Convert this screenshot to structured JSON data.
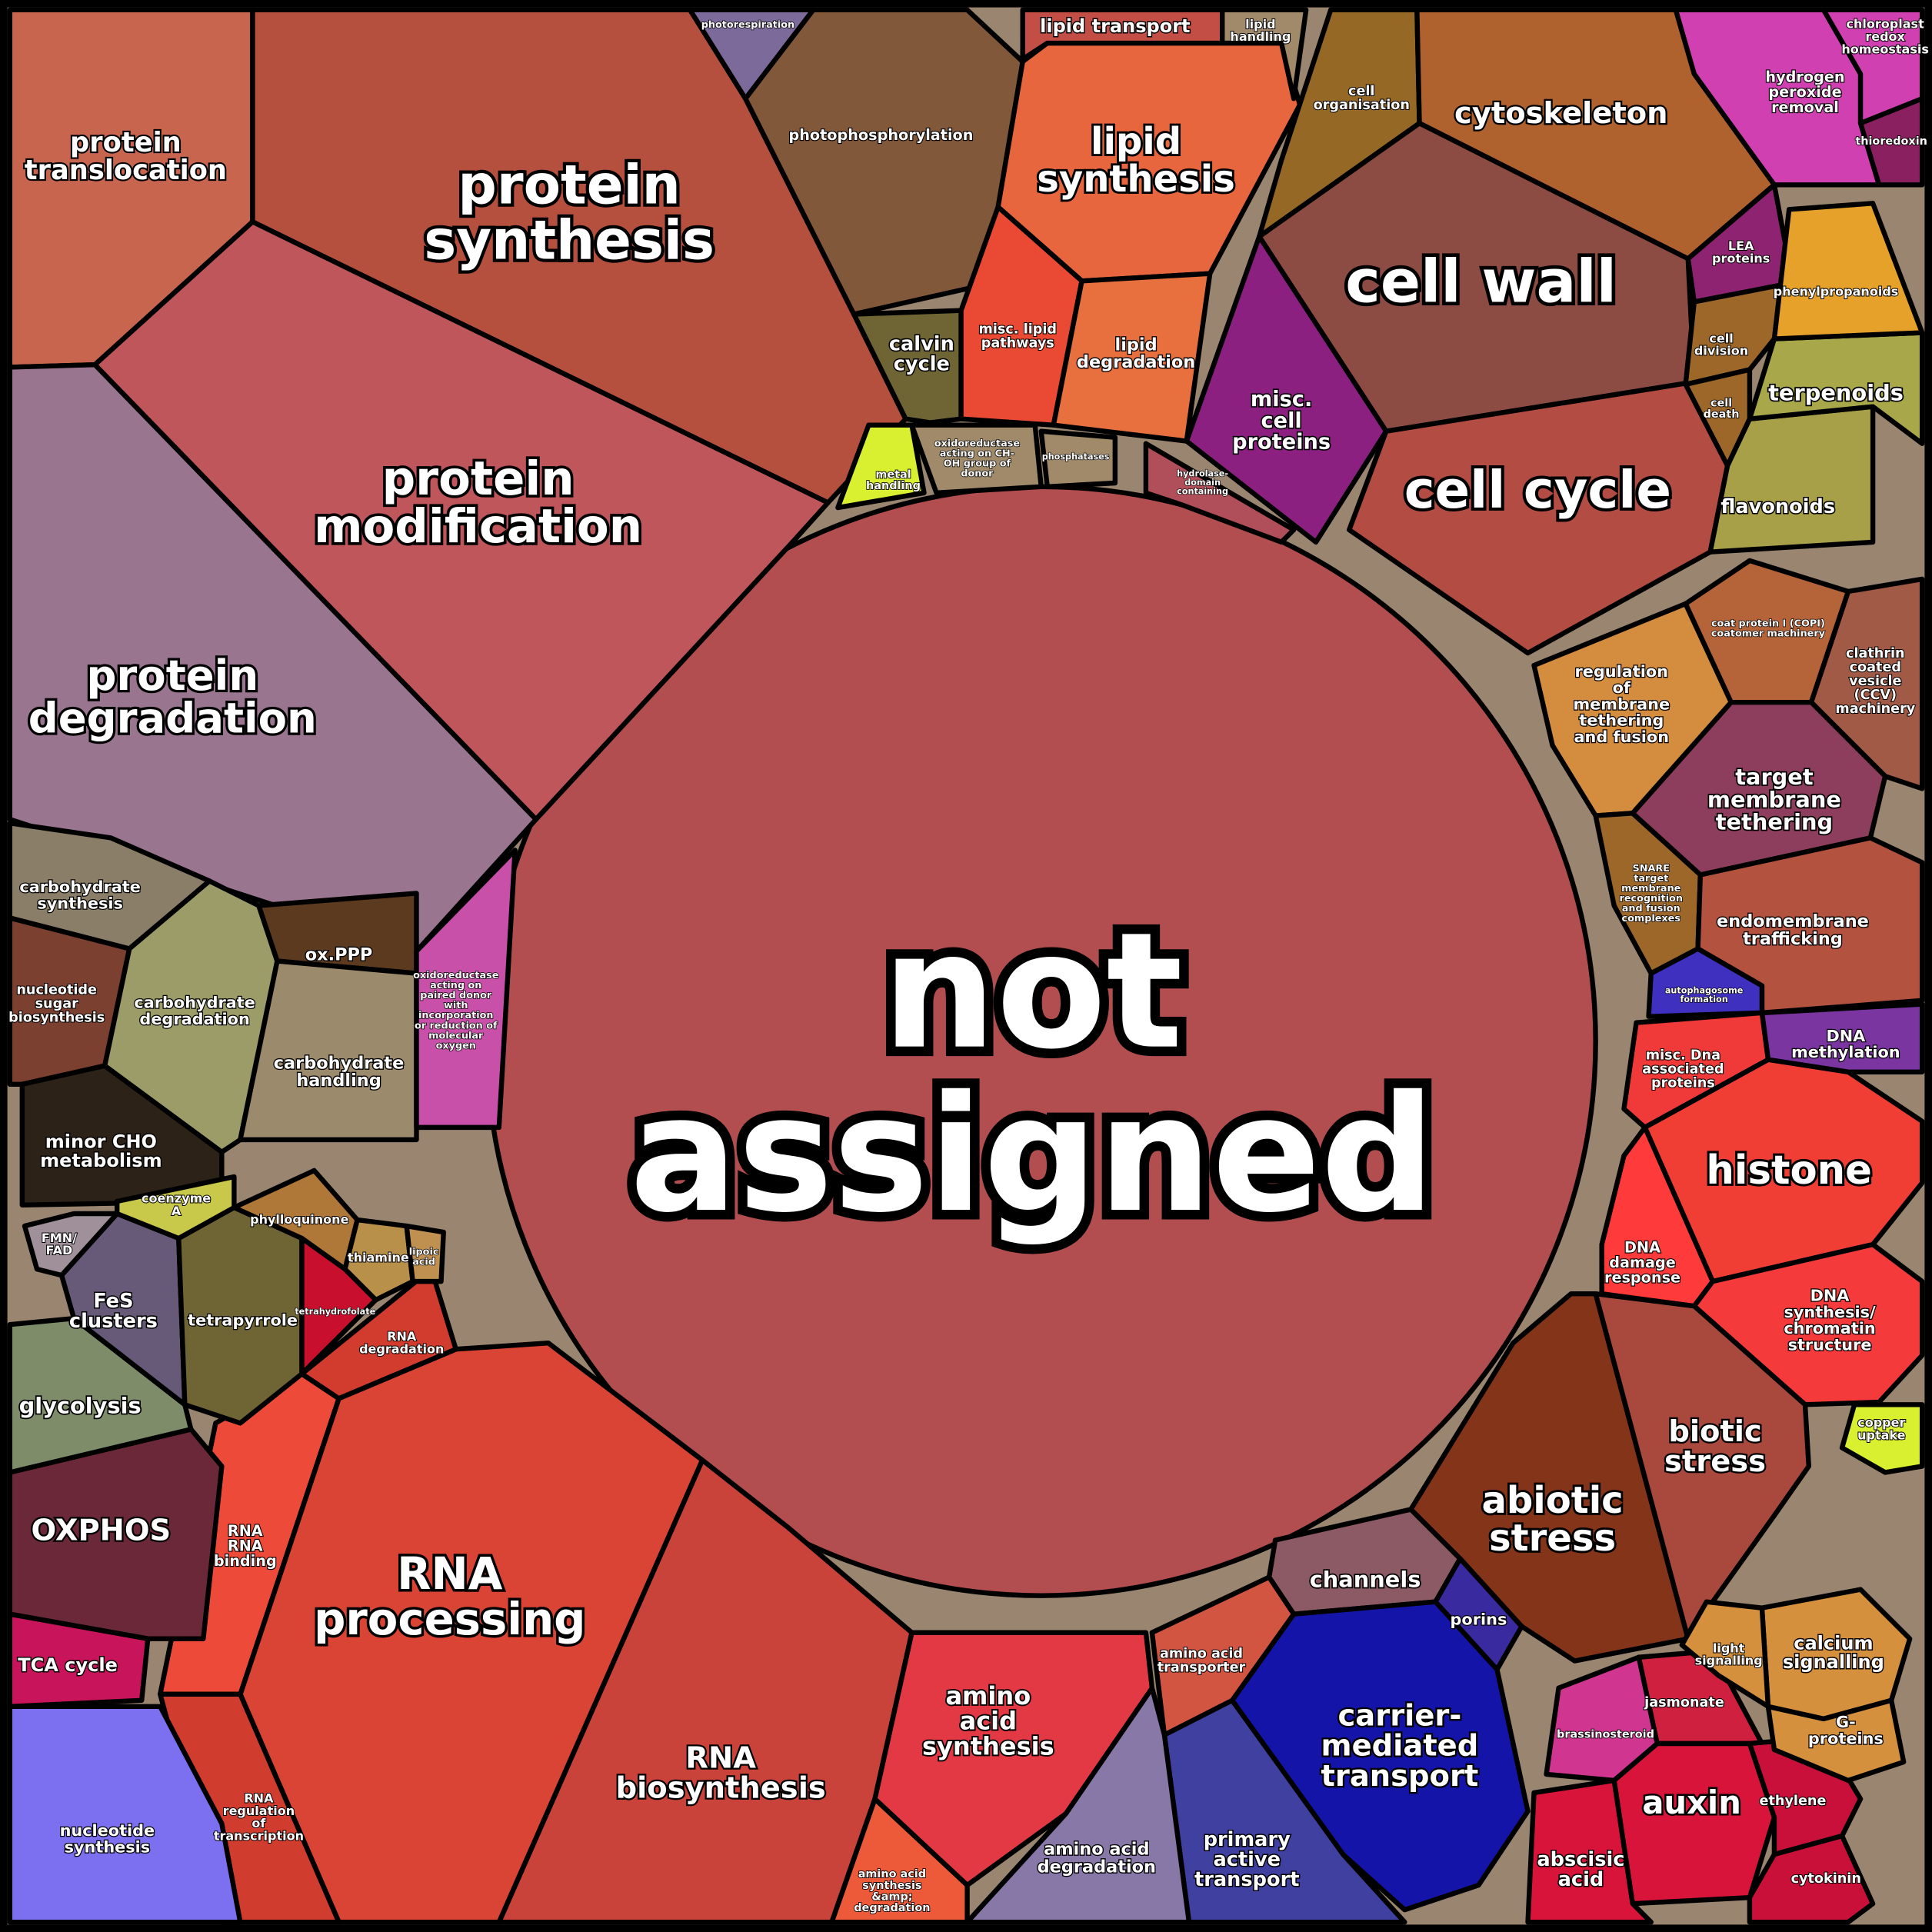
{
  "chart_data": {
    "type": "voronoi-treemap",
    "cells": [
      {
        "name": [
          "not",
          "assigned"
        ],
        "color": "#b24e50"
      },
      {
        "name": [
          "protein",
          "translocation"
        ],
        "color": "#c8654f"
      },
      {
        "name": [
          "protein",
          "synthesis"
        ],
        "color": "#b5503e"
      },
      {
        "name": [
          "protein",
          "modification"
        ],
        "color": "#be565c"
      },
      {
        "name": [
          "protein",
          "degradation"
        ],
        "color": "#9a7590"
      },
      {
        "name": [
          "photophosphorylation"
        ],
        "color": "#82583a"
      },
      {
        "name": [
          "photorespiration"
        ],
        "color": "#7c6b9a"
      },
      {
        "name": [
          "calvin",
          "cycle"
        ],
        "color": "#6e6434"
      },
      {
        "name": [
          "lipid",
          "synthesis"
        ],
        "color": "#e8663e"
      },
      {
        "name": [
          "lipid transport"
        ],
        "color": "#c24e45"
      },
      {
        "name": [
          "lipid",
          "handling"
        ],
        "color": "#a08a6a"
      },
      {
        "name": [
          "misc. lipid",
          "pathways"
        ],
        "color": "#ea4a33"
      },
      {
        "name": [
          "lipid",
          "degradation"
        ],
        "color": "#e8703e"
      },
      {
        "name": [
          "cell",
          "organisation"
        ],
        "color": "#966825"
      },
      {
        "name": [
          "cytoskeleton"
        ],
        "color": "#b0622e"
      },
      {
        "name": [
          "cell wall"
        ],
        "color": "#8c4b43"
      },
      {
        "name": [
          "misc.",
          "cell",
          "proteins"
        ],
        "color": "#8c2080"
      },
      {
        "name": [
          "cell cycle"
        ],
        "color": "#b34d43"
      },
      {
        "name": [
          "LEA",
          "proteins"
        ],
        "color": "#8e2471"
      },
      {
        "name": [
          "cell",
          "division"
        ],
        "color": "#9c6728"
      },
      {
        "name": [
          "cell",
          "death"
        ],
        "color": "#9c6728"
      },
      {
        "name": [
          "flavonoids"
        ],
        "color": "#a8a048"
      },
      {
        "name": [
          "terpenoids"
        ],
        "color": "#a8a84a"
      },
      {
        "name": [
          "phenylpropanoids"
        ],
        "color": "#e6a12a"
      },
      {
        "name": [
          "hydrogen",
          "peroxide",
          "removal"
        ],
        "color": "#d040b0"
      },
      {
        "name": [
          "thioredoxin"
        ],
        "color": "#8a2060"
      },
      {
        "name": [
          "regulation",
          "of",
          "membrane",
          "tethering",
          "and fusion"
        ],
        "color": "#d48c3e"
      },
      {
        "name": [
          "coat protein I (COPI)",
          "coatomer machinery"
        ],
        "color": "#b5643a"
      },
      {
        "name": [
          "clathrin",
          "coated",
          "vesicle",
          "(CCV)",
          "machinery"
        ],
        "color": "#a05a45"
      },
      {
        "name": [
          "target",
          "membrane",
          "tethering"
        ],
        "color": "#8c3e5c"
      },
      {
        "name": [
          "SNARE",
          "target",
          "membrane",
          "recognition",
          "and fusion",
          "complexes"
        ],
        "color": "#9c6728"
      },
      {
        "name": [
          "endomembrane",
          "trafficking"
        ],
        "color": "#b3533f"
      },
      {
        "name": [
          "autophagosome",
          "formation"
        ],
        "color": "#4030c0"
      },
      {
        "name": [
          "DNA",
          "methylation"
        ],
        "color": "#7b35a0"
      },
      {
        "name": [
          "misc. Dna",
          "associated",
          "proteins"
        ],
        "color": "#f03a3a"
      },
      {
        "name": [
          "histone"
        ],
        "color": "#f03e35"
      },
      {
        "name": [
          "DNA",
          "damage",
          "response"
        ],
        "color": "#ff3a3a"
      },
      {
        "name": [
          "DNA",
          "synthesis/",
          "chromatin",
          "structure"
        ],
        "color": "#f43a3a"
      },
      {
        "name": [
          "abiotic",
          "stress"
        ],
        "color": "#843418"
      },
      {
        "name": [
          "biotic",
          "stress"
        ],
        "color": "#a9493e"
      },
      {
        "name": [
          "channels"
        ],
        "color": "#8c5a64"
      },
      {
        "name": [
          "porins"
        ],
        "color": "#3a2aa0"
      },
      {
        "name": [
          "carrier-",
          "mediated",
          "transport"
        ],
        "color": "#1414a8"
      },
      {
        "name": [
          "primary",
          "active",
          "transport"
        ],
        "color": "#4040a0"
      },
      {
        "name": [
          "amino acid",
          "transporter"
        ],
        "color": "#d25542"
      },
      {
        "name": [
          "amino acid",
          "degradation"
        ],
        "color": "#8878a8"
      },
      {
        "name": [
          "amino",
          "acid",
          "synthesis"
        ],
        "color": "#e33944"
      },
      {
        "name": [
          "amino acid",
          "synthesis",
          "&amp;",
          "degradation"
        ],
        "color": "#ec5a3a"
      },
      {
        "name": [
          "RNA",
          "biosynthesis"
        ],
        "color": "#c9433b"
      },
      {
        "name": [
          "RNA",
          "processing"
        ],
        "color": "#d94434"
      },
      {
        "name": [
          "RNA",
          "RNA",
          "binding"
        ],
        "color": "#ee4a3a"
      },
      {
        "name": [
          "RNA",
          "regulation",
          "of",
          "transcription"
        ],
        "color": "#d03c2e"
      },
      {
        "name": [
          "RNA",
          "degradation"
        ],
        "color": "#d23c2e"
      },
      {
        "name": [
          "OXPHOS"
        ],
        "color": "#6a2838"
      },
      {
        "name": [
          "glycolysis"
        ],
        "color": "#7e8c6a"
      },
      {
        "name": [
          "TCA cycle"
        ],
        "color": "#c8145a"
      },
      {
        "name": [
          "nucleotide",
          "synthesis"
        ],
        "color": "#7c70f0"
      },
      {
        "name": [
          "FeS",
          "clusters"
        ],
        "color": "#665a78"
      },
      {
        "name": [
          "tetrapyrrole"
        ],
        "color": "#6e6434"
      },
      {
        "name": [
          "phylloquinone"
        ],
        "color": "#b07838"
      },
      {
        "name": [
          "tetrahydrofolate"
        ],
        "color": "#c8102e"
      },
      {
        "name": [
          "carbohydrate",
          "synthesis"
        ],
        "color": "#8a7e68"
      },
      {
        "name": [
          "nucleotide",
          "sugar",
          "biosynthesis"
        ],
        "color": "#7c4030"
      },
      {
        "name": [
          "carbohydrate",
          "degradation"
        ],
        "color": "#9c9c68"
      },
      {
        "name": [
          "ox.PPP"
        ],
        "color": "#5c3a20"
      },
      {
        "name": [
          "carbohydrate",
          "handling"
        ],
        "color": "#9c8a6c"
      },
      {
        "name": [
          "minor CHO",
          "metabolism"
        ],
        "color": "#2c2218"
      },
      {
        "name": [
          "oxidoreductase",
          "acting on",
          "paired donor",
          "with",
          "incorporation",
          "or reduction of",
          "molecular",
          "oxygen"
        ],
        "color": "#c850a8"
      },
      {
        "name": [
          "coenzyme",
          "A"
        ],
        "color": "#c8c84a"
      },
      {
        "name": [
          "metal",
          "handling"
        ],
        "color": "#d8f030"
      },
      {
        "name": [
          "auxin"
        ],
        "color": "#d8143a"
      },
      {
        "name": [
          "abscisic",
          "acid"
        ],
        "color": "#d8143a"
      },
      {
        "name": [
          "jasmonate"
        ],
        "color": "#d02040"
      },
      {
        "name": [
          "brassinosteroid"
        ],
        "color": "#d03690"
      },
      {
        "name": [
          "ethylene"
        ],
        "color": "#c8103a"
      },
      {
        "name": [
          "cytokinin"
        ],
        "color": "#c81038"
      },
      {
        "name": [
          "calcium",
          "signalling"
        ],
        "color": "#d4903c"
      },
      {
        "name": [
          "G-",
          "proteins"
        ],
        "color": "#d4903c"
      },
      {
        "name": [
          "light",
          "signalling"
        ],
        "color": "#d4903c"
      },
      {
        "name": [
          "copper",
          "uptake"
        ],
        "color": "#d8f030"
      },
      {
        "name": [
          "chloroplast",
          "redox",
          "homeostasis"
        ],
        "color": "#d040b0"
      },
      {
        "name": [
          "FMN/",
          "FAD"
        ],
        "color": "#a0909a"
      },
      {
        "name": [
          "thiamine"
        ],
        "color": "#b8904a"
      },
      {
        "name": [
          "lipoic",
          "acid"
        ],
        "color": "#c09050"
      },
      {
        "name": [
          "phosphatases"
        ],
        "color": "#a08a6a"
      },
      {
        "name": [
          "hydrolase-",
          "domain",
          "containing"
        ],
        "color": "#b04e5a"
      },
      {
        "name": [
          "oxidoreductase",
          "acting on CH-",
          "OH group of",
          "donor"
        ],
        "color": "#a08a6a"
      }
    ]
  }
}
